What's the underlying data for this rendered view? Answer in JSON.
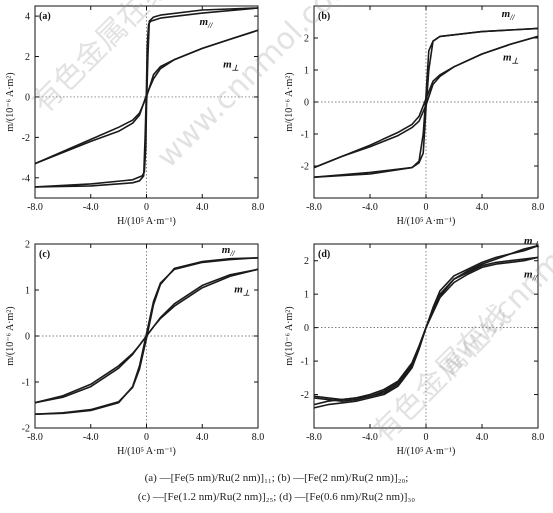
{
  "watermark": [
    "有色金属在线",
    "www.cnnmol.com"
  ],
  "captions": [
    "(a) —[Fe(5 nm)/Ru(2 nm)]₁₁; (b) —[Fe(2 nm)/Ru(2 nm)]₂₀;",
    "(c) —[Fe(1.2 nm)/Ru(2 nm)]₂₅; (d) —[Fe(0.6 nm)/Ru(2 nm)]₃₀"
  ],
  "chart_data": [
    {
      "type": "line",
      "panel_label": "(a)",
      "xlabel": "H/(10⁵ A·m⁻¹)",
      "ylabel": "m/(10⁻⁶ A·m²)",
      "xlim": [
        -8,
        8
      ],
      "ylim": [
        -5,
        4.5
      ],
      "xticks": [
        -8,
        -4,
        0,
        4,
        8
      ],
      "xtick_labels": [
        "-8.0",
        "-4.0",
        "0",
        "4.0",
        "8.0"
      ],
      "yticks": [
        -4,
        -2,
        0,
        2,
        4
      ],
      "ytick_labels": [
        "-4",
        "-2",
        "0",
        "2",
        "4"
      ],
      "series": [
        {
          "name": "m//",
          "label_pos": [
            3.8,
            3.55
          ],
          "branches": [
            {
              "x": [
                -8,
                -4,
                -1,
                -0.5,
                -0.2,
                -0.1,
                0,
                0.05,
                0.15,
                0.3,
                1,
                4,
                8
              ],
              "y": [
                -4.45,
                -4.4,
                -4.25,
                -4.15,
                -3.9,
                -2,
                0.5,
                2.5,
                3.6,
                3.75,
                3.9,
                4.15,
                4.4
              ]
            },
            {
              "x": [
                8,
                4,
                1,
                0.5,
                0.2,
                0.1,
                0,
                -0.05,
                -0.15,
                -0.3,
                -1,
                -4,
                -8
              ],
              "y": [
                4.4,
                4.3,
                4.05,
                3.95,
                3.75,
                2,
                -0.5,
                -2.5,
                -3.7,
                -3.9,
                -4.1,
                -4.3,
                -4.45
              ]
            }
          ]
        },
        {
          "name": "m⊥",
          "label_pos": [
            5.5,
            1.45
          ],
          "branches": [
            {
              "x": [
                -8,
                -6,
                -4,
                -2,
                -1,
                -0.5,
                0,
                0.5,
                1,
                2,
                4,
                6,
                8
              ],
              "y": [
                -3.3,
                -2.7,
                -2.1,
                -1.5,
                -1.15,
                -0.8,
                0,
                1.1,
                1.5,
                1.85,
                2.4,
                2.85,
                3.3
              ]
            },
            {
              "x": [
                8,
                6,
                4,
                2,
                1,
                0.5,
                0,
                -0.5,
                -1,
                -2,
                -4,
                -6,
                -8
              ],
              "y": [
                3.3,
                2.85,
                2.4,
                1.85,
                1.4,
                0.9,
                0.1,
                -0.9,
                -1.3,
                -1.7,
                -2.2,
                -2.75,
                -3.3
              ]
            }
          ]
        }
      ]
    },
    {
      "type": "line",
      "panel_label": "(b)",
      "xlabel": "H/(10⁵ A·m⁻¹)",
      "ylabel": "m/(10⁻⁶ A·m²)",
      "xlim": [
        -8,
        8
      ],
      "ylim": [
        -3,
        3
      ],
      "xticks": [
        -8,
        -4,
        0,
        4,
        8
      ],
      "xtick_labels": [
        "-8.0",
        "-4.0",
        "0",
        "4.0",
        "8.0"
      ],
      "yticks": [
        -2,
        -1,
        0,
        1,
        2
      ],
      "ytick_labels": [
        "-2",
        "-1",
        "0",
        "1",
        "2"
      ],
      "series": [
        {
          "name": "m//",
          "label_pos": [
            5.4,
            2.65
          ],
          "branches": [
            {
              "x": [
                -8,
                -4,
                -1,
                -0.5,
                -0.2,
                0,
                0.2,
                0.5,
                1,
                4,
                8
              ],
              "y": [
                -2.35,
                -2.25,
                -2.05,
                -1.85,
                -1.0,
                0.2,
                1.6,
                1.9,
                2.05,
                2.2,
                2.3
              ]
            },
            {
              "x": [
                8,
                4,
                1,
                0.5,
                0.2,
                0,
                -0.2,
                -0.5,
                -1,
                -4,
                -8
              ],
              "y": [
                2.3,
                2.2,
                2.05,
                1.9,
                1.0,
                -0.2,
                -1.6,
                -1.9,
                -2.05,
                -2.2,
                -2.35
              ]
            }
          ]
        },
        {
          "name": "m⊥",
          "label_pos": [
            5.5,
            1.3
          ],
          "branches": [
            {
              "x": [
                -8,
                -6,
                -4,
                -2,
                -1,
                -0.5,
                0,
                0.5,
                1,
                2,
                4,
                6,
                8
              ],
              "y": [
                -2.05,
                -1.7,
                -1.35,
                -0.95,
                -0.7,
                -0.45,
                0.1,
                0.65,
                0.85,
                1.1,
                1.5,
                1.8,
                2.05
              ]
            },
            {
              "x": [
                8,
                6,
                4,
                2,
                1,
                0.5,
                0,
                -0.5,
                -1,
                -2,
                -4,
                -6,
                -8
              ],
              "y": [
                2.05,
                1.8,
                1.5,
                1.1,
                0.8,
                0.55,
                -0.1,
                -0.6,
                -0.8,
                -1.05,
                -1.4,
                -1.7,
                -2.05
              ]
            }
          ]
        }
      ]
    },
    {
      "type": "line",
      "panel_label": "(c)",
      "xlabel": "H/(10⁵ A·m⁻¹)",
      "ylabel": "m/(10⁻⁶ A·m²)",
      "xlim": [
        -8,
        8
      ],
      "ylim": [
        -2,
        2
      ],
      "xticks": [
        -8,
        -4,
        0,
        4,
        8
      ],
      "xtick_labels": [
        "-8.0",
        "-4.0",
        "0",
        "4.0",
        "8.0"
      ],
      "yticks": [
        -2,
        -1,
        0,
        1,
        2
      ],
      "ytick_labels": [
        "-2",
        "-1",
        "0",
        "1",
        "2"
      ],
      "series": [
        {
          "name": "m//",
          "label_pos": [
            5.4,
            1.8
          ],
          "branches": [
            {
              "x": [
                -8,
                -6,
                -4,
                -2,
                -1,
                -0.5,
                0,
                0.5,
                1,
                2,
                4,
                6,
                8
              ],
              "y": [
                -1.7,
                -1.68,
                -1.62,
                -1.45,
                -1.1,
                -0.65,
                0.05,
                0.75,
                1.15,
                1.45,
                1.6,
                1.66,
                1.7
              ]
            },
            {
              "x": [
                8,
                6,
                4,
                2,
                1,
                0.5,
                0,
                -0.5,
                -1,
                -2,
                -4,
                -6,
                -8
              ],
              "y": [
                1.7,
                1.68,
                1.62,
                1.47,
                1.12,
                0.68,
                -0.05,
                -0.72,
                -1.12,
                -1.43,
                -1.6,
                -1.67,
                -1.7
              ]
            }
          ]
        },
        {
          "name": "m⊥",
          "label_pos": [
            6.3,
            0.95
          ],
          "branches": [
            {
              "x": [
                -8,
                -6,
                -4,
                -2,
                -1,
                -0.5,
                0,
                0.5,
                1,
                2,
                4,
                6,
                8
              ],
              "y": [
                -1.45,
                -1.3,
                -1.05,
                -0.65,
                -0.38,
                -0.2,
                0.0,
                0.2,
                0.4,
                0.7,
                1.1,
                1.33,
                1.45
              ]
            },
            {
              "x": [
                8,
                6,
                4,
                2,
                1,
                0.5,
                0,
                -0.5,
                -1,
                -2,
                -4,
                -6,
                -8
              ],
              "y": [
                1.45,
                1.3,
                1.05,
                0.65,
                0.38,
                0.2,
                0.0,
                -0.2,
                -0.4,
                -0.7,
                -1.1,
                -1.33,
                -1.45
              ]
            }
          ]
        }
      ]
    },
    {
      "type": "line",
      "panel_label": "(d)",
      "xlabel": "H/(10⁵ A·m⁻¹)",
      "ylabel": "m/(10⁻⁶ A·m²)",
      "xlim": [
        -8,
        8
      ],
      "ylim": [
        -3,
        2.5
      ],
      "xticks": [
        -8,
        -4,
        0,
        4,
        8
      ],
      "xtick_labels": [
        "-8.0",
        "-4.0",
        "0",
        "4.0",
        "8.0"
      ],
      "yticks": [
        -2,
        -1,
        0,
        1,
        2
      ],
      "ytick_labels": [
        "-2",
        "-1",
        "0",
        "1",
        "2"
      ],
      "series": [
        {
          "name": "m⊥",
          "label_pos": [
            7.0,
            2.5
          ],
          "branches": [
            {
              "x": [
                -8,
                -7,
                -6,
                -5,
                -4,
                -3,
                -2,
                -1,
                -0.5,
                0,
                0.5,
                1,
                2,
                3,
                4,
                5,
                6,
                7,
                8
              ],
              "y": [
                -2.1,
                -2.15,
                -2.2,
                -2.15,
                -2.05,
                -1.9,
                -1.65,
                -1.1,
                -0.6,
                0.0,
                0.6,
                1.1,
                1.55,
                1.75,
                1.95,
                2.1,
                2.2,
                2.3,
                2.45
              ]
            },
            {
              "x": [
                8,
                7,
                6,
                5,
                4,
                3,
                2,
                1,
                0.5,
                0,
                -0.5,
                -1,
                -2,
                -3,
                -4,
                -5,
                -6,
                -7,
                -8
              ],
              "y": [
                2.45,
                2.35,
                2.2,
                2.05,
                1.9,
                1.7,
                1.45,
                0.95,
                0.5,
                0.0,
                -0.65,
                -1.2,
                -1.75,
                -2.0,
                -2.1,
                -2.2,
                -2.25,
                -2.3,
                -2.4
              ]
            }
          ]
        },
        {
          "name": "m//",
          "label_pos": [
            7.0,
            1.5
          ],
          "branches": [
            {
              "x": [
                -8,
                -7,
                -6,
                -5,
                -4,
                -3,
                -2,
                -1,
                -0.5,
                0,
                0.5,
                1,
                2,
                3,
                4,
                5,
                6,
                7,
                8
              ],
              "y": [
                -2.05,
                -2.1,
                -2.15,
                -2.1,
                -2.0,
                -1.85,
                -1.6,
                -1.05,
                -0.55,
                0.0,
                0.55,
                1.0,
                1.45,
                1.65,
                1.85,
                1.95,
                2.0,
                2.05,
                2.1
              ]
            },
            {
              "x": [
                8,
                7,
                6,
                5,
                4,
                3,
                2,
                1,
                0.5,
                0,
                -0.5,
                -1,
                -2,
                -3,
                -4,
                -5,
                -6,
                -7,
                -8
              ],
              "y": [
                2.1,
                2.0,
                1.95,
                1.9,
                1.8,
                1.6,
                1.35,
                0.9,
                0.45,
                0.0,
                -0.6,
                -1.15,
                -1.7,
                -1.95,
                -2.05,
                -2.1,
                -2.15,
                -2.2,
                -2.3
              ]
            }
          ]
        }
      ]
    }
  ]
}
